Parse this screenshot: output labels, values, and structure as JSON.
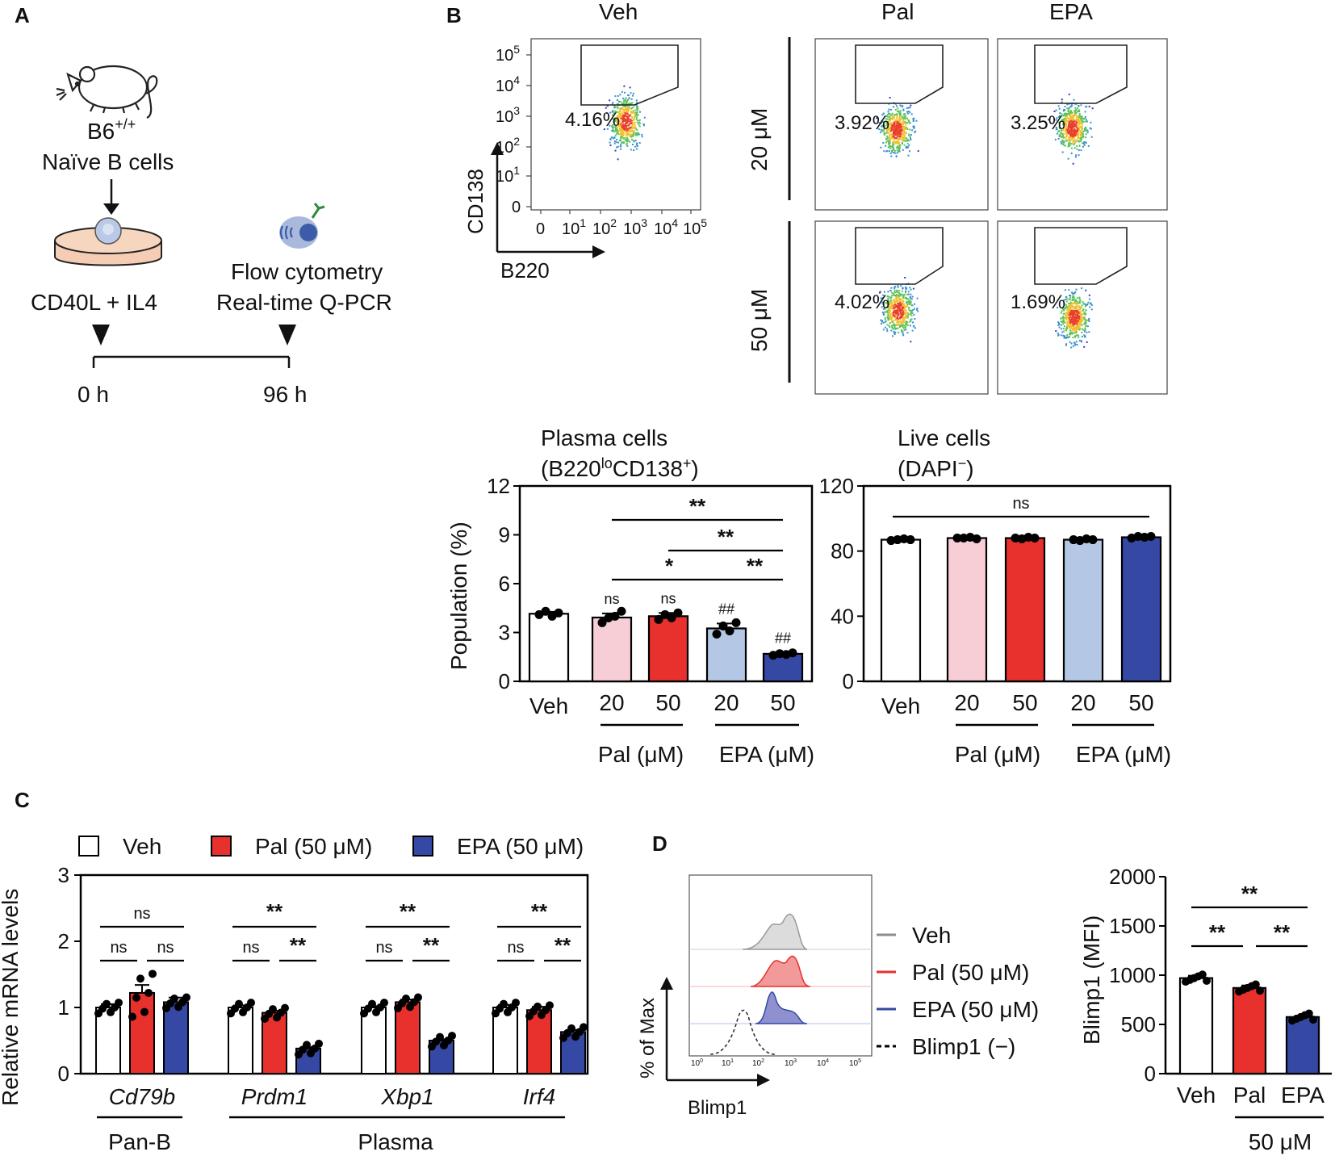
{
  "panels": {
    "a": "A",
    "b": "B",
    "c": "C",
    "d": "D"
  },
  "colors": {
    "veh": "#ffffff",
    "pal20": "#f7cdd6",
    "pal50": "#e8302c",
    "epa20": "#b4c7e4",
    "epa50": "#3448a4",
    "edge": "#000000"
  },
  "panel_a": {
    "mouse": "B6",
    "mouse_sup": "+/+",
    "cells": "Naïve B cells",
    "stimulus": "CD40L + IL4",
    "readout1": "Flow cytometry",
    "readout2": "Real-time Q-PCR",
    "t_start": "0 h",
    "t_end": "96 h",
    "icons": [
      "mouse-icon",
      "culture-dish-icon",
      "flow-cytometry-icon"
    ]
  },
  "panel_b_flow": {
    "col_veh": "Veh",
    "col_pal": "Pal",
    "col_epa": "EPA",
    "row_20": "20 μM",
    "row_50": "50 μM",
    "y_axis": "CD138",
    "x_axis": "B220",
    "y_ticks": [
      "10",
      "10",
      "10",
      "10",
      "10",
      "0"
    ],
    "y_tick_exps": [
      "5",
      "4",
      "3",
      "2",
      "1",
      ""
    ],
    "x_ticks": [
      "0",
      "10",
      "10",
      "10",
      "10",
      "10"
    ],
    "x_tick_exps": [
      "",
      "1",
      "2",
      "3",
      "4",
      "5"
    ],
    "pct_veh": "4.16%",
    "pct_pal20": "3.92%",
    "pct_epa20": "3.25%",
    "pct_pal50": "4.02%",
    "pct_epa50": "1.69%"
  },
  "chart_data": [
    {
      "type": "bar",
      "id": "plasma-cells",
      "title_line1": "Plasma cells",
      "title_line2_a": "(B220",
      "title_line2_sup": "lo",
      "title_line2_b": "CD138",
      "title_line2_sup2": "+",
      "title_line2_c": ")",
      "ylabel": "Population (%)",
      "ylim": [
        0,
        12
      ],
      "yticks": [
        0,
        3,
        6,
        9,
        12
      ],
      "categories": [
        "Veh",
        "20",
        "50",
        "20",
        "50"
      ],
      "group_labels": [
        "Pal (μM)",
        "EPA (μM)"
      ],
      "values": [
        4.15,
        3.92,
        4.0,
        3.25,
        1.69
      ],
      "errors": [
        0.12,
        0.25,
        0.2,
        0.3,
        0.07
      ],
      "points": [
        [
          4.1,
          4.3,
          4.0,
          4.2
        ],
        [
          3.6,
          3.9,
          4.0,
          4.3
        ],
        [
          3.8,
          4.1,
          3.9,
          4.2
        ],
        [
          2.9,
          3.4,
          3.1,
          3.6
        ],
        [
          1.6,
          1.7,
          1.65,
          1.75
        ]
      ],
      "bar_labels": [
        "",
        "ns",
        "ns",
        "##",
        "##"
      ],
      "comparisons": [
        {
          "from": 1,
          "to": 4,
          "label": "**"
        },
        {
          "from": 2,
          "to": 4,
          "label": "**"
        },
        {
          "from": 1,
          "to": 3,
          "label": "*"
        },
        {
          "from": 3,
          "to": 4,
          "label": "**"
        }
      ]
    },
    {
      "type": "bar",
      "id": "live-cells",
      "title_line1": "Live cells",
      "title_line2_a": "(DAPI",
      "title_line2_sup": "−",
      "title_line2_b": ")",
      "ylabel": "",
      "ylim": [
        0,
        120
      ],
      "yticks": [
        0,
        40,
        80,
        120
      ],
      "categories": [
        "Veh",
        "20",
        "50",
        "20",
        "50"
      ],
      "group_labels": [
        "Pal (μM)",
        "EPA (μM)"
      ],
      "values": [
        87,
        88,
        88,
        87,
        88.5
      ],
      "errors": [
        0.5,
        0.4,
        0.4,
        0.4,
        0.6
      ],
      "points": [
        [
          86.5,
          87,
          87.5,
          87
        ],
        [
          88,
          88,
          88.5,
          87.5
        ],
        [
          88,
          87.5,
          88.5,
          88
        ],
        [
          87,
          86.5,
          87.5,
          87
        ],
        [
          88,
          89,
          88.5,
          89
        ]
      ],
      "comparisons": [
        {
          "from": 0,
          "to": 4,
          "label": "ns"
        }
      ]
    },
    {
      "type": "bar",
      "id": "mrna",
      "ylabel": "Relative mRNA levels",
      "ylim": [
        0,
        3
      ],
      "yticks": [
        0,
        1,
        2,
        3
      ],
      "legend": [
        "Veh",
        "Pal (50 μM)",
        "EPA (50 μM)"
      ],
      "genes": [
        "Cd79b",
        "Prdm1",
        "Xbp1",
        "Irf4"
      ],
      "group_labels": [
        "Pan-B",
        "Plasma"
      ],
      "series": [
        {
          "name": "Veh",
          "values": [
            1.0,
            1.0,
            1.0,
            1.0
          ]
        },
        {
          "name": "Pal (50 μM)",
          "values": [
            1.22,
            0.92,
            1.08,
            0.96
          ]
        },
        {
          "name": "EPA (50 μM)",
          "values": [
            1.08,
            0.38,
            0.5,
            0.63
          ]
        }
      ],
      "errors": [
        [
          0.05,
          0.12,
          0.07
        ],
        [
          0.03,
          0.03,
          0.02
        ],
        [
          0.02,
          0.04,
          0.02
        ],
        [
          0.04,
          0.05,
          0.03
        ]
      ],
      "comparisons": [
        {
          "gene": 0,
          "pair": "veh-epa",
          "label": "ns"
        },
        {
          "gene": 0,
          "pair": "veh-pal",
          "label": "ns"
        },
        {
          "gene": 0,
          "pair": "pal-epa",
          "label": "ns"
        },
        {
          "gene": 1,
          "pair": "veh-epa",
          "label": "**"
        },
        {
          "gene": 1,
          "pair": "veh-pal",
          "label": "ns"
        },
        {
          "gene": 1,
          "pair": "pal-epa",
          "label": "**"
        },
        {
          "gene": 2,
          "pair": "veh-epa",
          "label": "**"
        },
        {
          "gene": 2,
          "pair": "veh-pal",
          "label": "ns"
        },
        {
          "gene": 2,
          "pair": "pal-epa",
          "label": "**"
        },
        {
          "gene": 3,
          "pair": "veh-epa",
          "label": "**"
        },
        {
          "gene": 3,
          "pair": "veh-pal",
          "label": "ns"
        },
        {
          "gene": 3,
          "pair": "pal-epa",
          "label": "**"
        }
      ]
    },
    {
      "type": "bar",
      "id": "blimp1-mfi",
      "ylabel": "Blimp1 (MFI)",
      "ylim": [
        0,
        2000
      ],
      "yticks": [
        0,
        500,
        1000,
        1500,
        2000
      ],
      "categories": [
        "Veh",
        "Pal",
        "EPA"
      ],
      "group_label": "50 μM",
      "values": [
        970,
        870,
        575
      ],
      "errors": [
        25,
        25,
        12
      ],
      "comparisons": [
        {
          "from": 0,
          "to": 2,
          "label": "**"
        },
        {
          "from": 0,
          "to": 1,
          "label": "**"
        },
        {
          "from": 1,
          "to": 2,
          "label": "**"
        }
      ]
    }
  ],
  "panel_d_histogram": {
    "y_axis": "% of Max",
    "x_axis": "Blimp1",
    "legend": [
      "Veh",
      "Pal (50 μM)",
      "EPA (50 μM)",
      "Blimp1 (−)"
    ],
    "x_ticks": [
      "10",
      "10",
      "10",
      "10",
      "10",
      "10"
    ],
    "x_tick_exps": [
      "0",
      "1",
      "2",
      "3",
      "4",
      "5"
    ],
    "legend_colors": [
      "#8c8c8c",
      "#e8302c",
      "#3448a4",
      "#000000"
    ]
  }
}
